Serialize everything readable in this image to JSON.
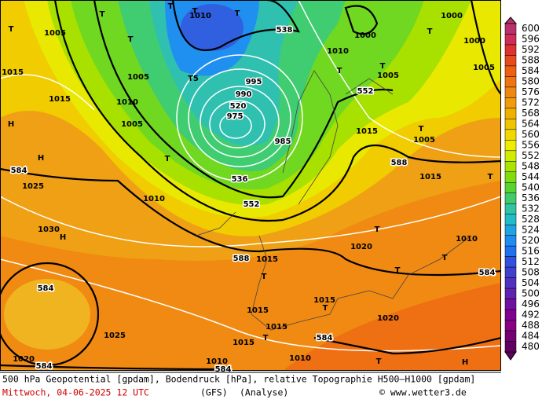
{
  "map": {
    "labels": [
      "1010",
      "T",
      "T",
      "T",
      "T",
      "1005",
      "1000",
      "1000",
      "T",
      "T",
      "538",
      "1010",
      "T",
      "T",
      "1005",
      "552",
      "1005",
      "T5",
      "995",
      "990",
      "520",
      "975",
      "985",
      "1010",
      "1005",
      "H",
      "1015",
      "T",
      "H",
      "584",
      "1025",
      "T",
      "536",
      "552",
      "1010",
      "1030",
      "H",
      "588",
      "1015",
      "T",
      "584",
      "1025",
      "1020",
      "584",
      "1010",
      "584",
      "584",
      "T",
      "1015",
      "1020",
      "T",
      "T",
      "1020",
      "584",
      "T",
      "588",
      "1015",
      "T",
      "1005",
      "H",
      "T",
      "1010",
      "1015",
      "T",
      "1015",
      "1015",
      "1015",
      "T",
      "1010",
      "1000",
      "1005",
      "1015"
    ]
  },
  "colorbar": {
    "labels": [
      600,
      596,
      592,
      588,
      584,
      580,
      576,
      572,
      568,
      564,
      560,
      556,
      552,
      548,
      544,
      540,
      536,
      532,
      528,
      524,
      520,
      516,
      512,
      508,
      504,
      500,
      496,
      492,
      488,
      484,
      480
    ],
    "colors": [
      "#b8306c",
      "#d02c58",
      "#e03030",
      "#e84a1c",
      "#ee6010",
      "#f07410",
      "#f08810",
      "#f09c0c",
      "#f0b000",
      "#f0c400",
      "#f0d800",
      "#f0ec00",
      "#d0ec00",
      "#a8e400",
      "#80dc10",
      "#58d430",
      "#40cc68",
      "#30c4a4",
      "#20bcc8",
      "#20a4e0",
      "#208cf0",
      "#2070f0",
      "#3050e0",
      "#4040d0",
      "#5030c0",
      "#6020b0",
      "#7010a0",
      "#800090",
      "#8a0084",
      "#740074",
      "#600060"
    ]
  },
  "footer": {
    "line1": "500 hPa Geopotential [gpdam], Bodendruck [hPa], relative Topographie H500–H1000 [gpdam]",
    "date": "Mittwoch, 04-06-2025  12 UTC",
    "model": "(GFS)",
    "run": "(Analyse)",
    "credit": "© www.wetter3.de"
  }
}
